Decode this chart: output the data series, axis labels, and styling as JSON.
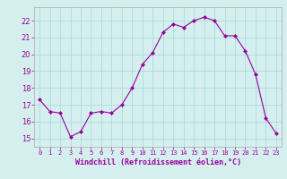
{
  "x": [
    0,
    1,
    2,
    3,
    4,
    5,
    6,
    7,
    8,
    9,
    10,
    11,
    12,
    13,
    14,
    15,
    16,
    17,
    18,
    19,
    20,
    21,
    22,
    23
  ],
  "y": [
    17.3,
    16.6,
    16.5,
    15.1,
    15.4,
    16.5,
    16.6,
    16.5,
    17.0,
    18.0,
    19.4,
    20.1,
    21.3,
    21.8,
    21.6,
    22.0,
    22.2,
    22.0,
    21.1,
    21.1,
    20.2,
    18.8,
    16.2,
    15.3
  ],
  "line_color": "#990099",
  "marker": "D",
  "marker_size": 2,
  "bg_color": "#d5efef",
  "grid_color": "#aadddd",
  "xlabel": "Windchill (Refroidissement éolien,°C)",
  "xlabel_color": "#990099",
  "tick_color": "#990099",
  "ylim": [
    14.5,
    22.8
  ],
  "xlim": [
    -0.5,
    23.5
  ],
  "yticks": [
    15,
    16,
    17,
    18,
    19,
    20,
    21,
    22
  ],
  "xticks": [
    0,
    1,
    2,
    3,
    4,
    5,
    6,
    7,
    8,
    9,
    10,
    11,
    12,
    13,
    14,
    15,
    16,
    17,
    18,
    19,
    20,
    21,
    22,
    23
  ]
}
